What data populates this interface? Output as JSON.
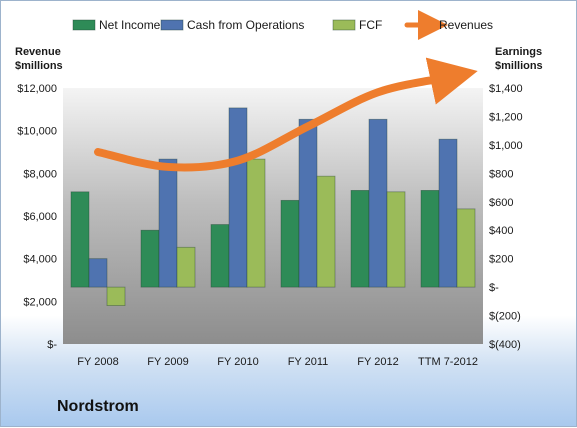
{
  "company": "Nordstrom",
  "chart_data": {
    "type": "bar",
    "title": "",
    "categories": [
      "FY 2008",
      "FY 2009",
      "FY 2010",
      "FY 2011",
      "FY 2012",
      "TTM 7-2012"
    ],
    "series": [
      {
        "name": "Net Income",
        "axis": "right",
        "color": "#2e8b57",
        "values": [
          670,
          400,
          440,
          610,
          680,
          680
        ]
      },
      {
        "name": "Cash from Operations",
        "axis": "right",
        "color": "#4f73b0",
        "values": [
          200,
          900,
          1260,
          1180,
          1180,
          1040
        ]
      },
      {
        "name": "FCF",
        "axis": "right",
        "color": "#9bbb59",
        "values": [
          -130,
          280,
          900,
          780,
          670,
          550
        ]
      },
      {
        "name": "Revenues",
        "axis": "left",
        "type": "line",
        "color": "#ee7d2d",
        "values": [
          9000,
          8300,
          8600,
          10200,
          11800,
          12500
        ]
      }
    ],
    "y_left": {
      "label_line1": "Revenue",
      "label_line2": "$millions",
      "range": [
        0,
        12000
      ],
      "ticks": [
        {
          "value": 12000,
          "label": "$12,000"
        },
        {
          "value": 10000,
          "label": "$10,000"
        },
        {
          "value": 8000,
          "label": "$8,000"
        },
        {
          "value": 6000,
          "label": "$6,000"
        },
        {
          "value": 4000,
          "label": "$4,000"
        },
        {
          "value": 2000,
          "label": "$2,000"
        },
        {
          "value": 0,
          "label": "$-"
        }
      ]
    },
    "y_right": {
      "label_line1": "Earnings",
      "label_line2": "$millions",
      "range": [
        -400,
        1400
      ],
      "ticks": [
        {
          "value": 1400,
          "label": "$1,400"
        },
        {
          "value": 1200,
          "label": "$1,200"
        },
        {
          "value": 1000,
          "label": "$1,000"
        },
        {
          "value": 800,
          "label": "$800"
        },
        {
          "value": 600,
          "label": "$600"
        },
        {
          "value": 400,
          "label": "$400"
        },
        {
          "value": 200,
          "label": "$200"
        },
        {
          "value": 0,
          "label": "$-"
        },
        {
          "value": -200,
          "label": "$(200)"
        },
        {
          "value": -400,
          "label": "$(400)"
        }
      ]
    },
    "legend_position": "top",
    "grid": false
  }
}
